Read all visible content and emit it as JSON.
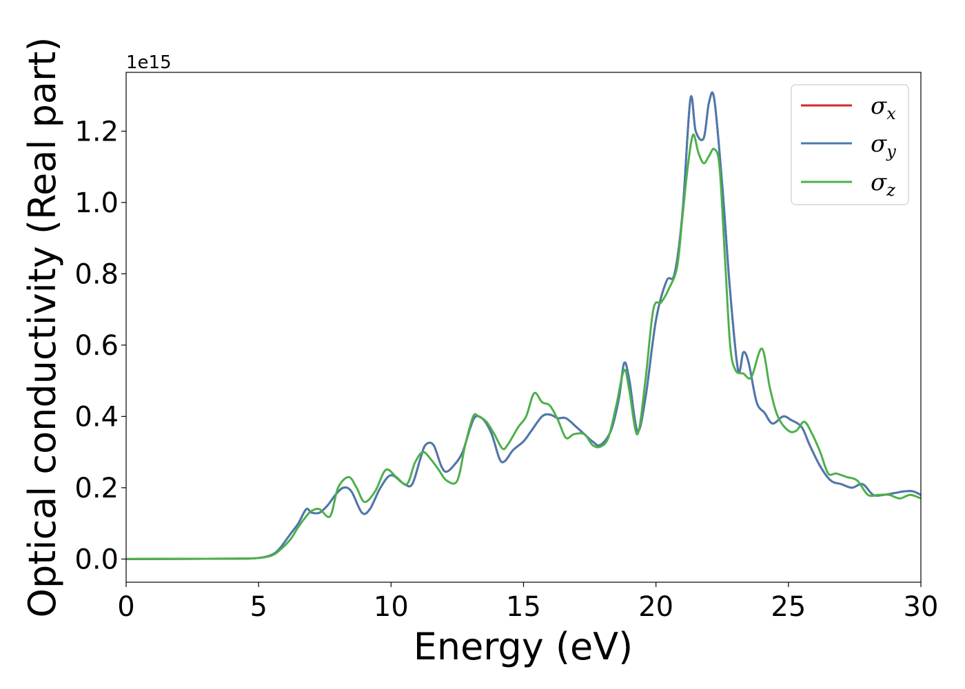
{
  "chart_data": {
    "type": "line",
    "xlabel": "Energy (eV)",
    "ylabel": "Optical conductivity (Real part)",
    "y_offset_label": "1e15",
    "xlim": [
      0,
      30
    ],
    "ylim": [
      -0.065,
      1.365
    ],
    "x_ticks": [
      0,
      5,
      10,
      15,
      20,
      25,
      30
    ],
    "x_tick_labels": [
      "0",
      "5",
      "10",
      "15",
      "20",
      "25",
      "30"
    ],
    "y_ticks": [
      0.0,
      0.2,
      0.4,
      0.6,
      0.8,
      1.0,
      1.2
    ],
    "y_tick_labels": [
      "0.0",
      "0.2",
      "0.4",
      "0.6",
      "0.8",
      "1.0",
      "1.2"
    ],
    "grid": false,
    "legend_position": "top-right",
    "series": [
      {
        "name": "σx",
        "legend_symbol": "σ",
        "legend_subscript": "x",
        "color": "#d62728",
        "x": [
          0,
          4,
          5,
          5.5,
          5.8,
          6.2,
          6.5,
          6.8,
          7.0,
          7.3,
          7.6,
          7.9,
          8.2,
          8.5,
          8.9,
          9.2,
          9.6,
          10.0,
          10.5,
          10.8,
          11.1,
          11.3,
          11.6,
          11.9,
          12.1,
          12.4,
          12.7,
          13.0,
          13.2,
          13.5,
          13.8,
          14.1,
          14.3,
          14.6,
          15.0,
          15.3,
          15.7,
          16.0,
          16.3,
          16.6,
          17.0,
          17.3,
          17.6,
          17.9,
          18.3,
          18.6,
          18.8,
          19.0,
          19.3,
          19.6,
          20.0,
          20.4,
          20.7,
          21.0,
          21.3,
          21.5,
          21.8,
          22.0,
          22.2,
          22.5,
          22.8,
          23.1,
          23.3,
          23.5,
          23.8,
          24.1,
          24.4,
          24.8,
          25.1,
          25.5,
          25.8,
          26.2,
          26.6,
          27.0,
          27.4,
          27.8,
          28.2,
          28.6,
          29.0,
          29.4,
          29.7,
          30.0
        ],
        "y": [
          0,
          0.001,
          0.003,
          0.012,
          0.03,
          0.07,
          0.1,
          0.14,
          0.13,
          0.13,
          0.15,
          0.18,
          0.2,
          0.19,
          0.13,
          0.14,
          0.2,
          0.235,
          0.21,
          0.21,
          0.28,
          0.32,
          0.32,
          0.26,
          0.245,
          0.265,
          0.3,
          0.37,
          0.4,
          0.39,
          0.35,
          0.28,
          0.275,
          0.305,
          0.33,
          0.36,
          0.4,
          0.405,
          0.395,
          0.395,
          0.37,
          0.35,
          0.33,
          0.32,
          0.36,
          0.45,
          0.55,
          0.5,
          0.36,
          0.45,
          0.67,
          0.78,
          0.8,
          0.97,
          1.29,
          1.2,
          1.18,
          1.28,
          1.29,
          1.05,
          0.75,
          0.53,
          0.58,
          0.55,
          0.44,
          0.41,
          0.38,
          0.4,
          0.39,
          0.37,
          0.32,
          0.26,
          0.22,
          0.21,
          0.2,
          0.21,
          0.18,
          0.18,
          0.185,
          0.19,
          0.19,
          0.18
        ]
      },
      {
        "name": "σy",
        "legend_symbol": "σ",
        "legend_subscript": "y",
        "color": "#4a7aaf",
        "x": [
          0,
          4,
          5,
          5.5,
          5.8,
          6.2,
          6.5,
          6.8,
          7.0,
          7.3,
          7.6,
          7.9,
          8.2,
          8.5,
          8.9,
          9.2,
          9.6,
          10.0,
          10.5,
          10.8,
          11.1,
          11.3,
          11.6,
          11.9,
          12.1,
          12.4,
          12.7,
          13.0,
          13.2,
          13.5,
          13.8,
          14.1,
          14.3,
          14.6,
          15.0,
          15.3,
          15.7,
          16.0,
          16.3,
          16.6,
          17.0,
          17.3,
          17.6,
          17.9,
          18.3,
          18.6,
          18.8,
          19.0,
          19.3,
          19.6,
          20.0,
          20.4,
          20.7,
          21.0,
          21.3,
          21.5,
          21.8,
          22.0,
          22.2,
          22.5,
          22.8,
          23.1,
          23.3,
          23.5,
          23.8,
          24.1,
          24.4,
          24.8,
          25.1,
          25.5,
          25.8,
          26.2,
          26.6,
          27.0,
          27.4,
          27.8,
          28.2,
          28.6,
          29.0,
          29.4,
          29.7,
          30.0
        ],
        "y": [
          0,
          0.001,
          0.003,
          0.012,
          0.03,
          0.07,
          0.1,
          0.14,
          0.13,
          0.13,
          0.15,
          0.18,
          0.2,
          0.19,
          0.13,
          0.14,
          0.2,
          0.235,
          0.21,
          0.21,
          0.28,
          0.32,
          0.32,
          0.26,
          0.245,
          0.265,
          0.3,
          0.37,
          0.4,
          0.39,
          0.35,
          0.28,
          0.275,
          0.305,
          0.33,
          0.36,
          0.4,
          0.405,
          0.395,
          0.395,
          0.37,
          0.35,
          0.33,
          0.32,
          0.36,
          0.45,
          0.55,
          0.5,
          0.36,
          0.45,
          0.67,
          0.78,
          0.8,
          0.97,
          1.29,
          1.2,
          1.18,
          1.28,
          1.29,
          1.05,
          0.75,
          0.53,
          0.58,
          0.55,
          0.44,
          0.41,
          0.38,
          0.4,
          0.39,
          0.37,
          0.32,
          0.26,
          0.22,
          0.21,
          0.2,
          0.21,
          0.18,
          0.18,
          0.185,
          0.19,
          0.19,
          0.18
        ]
      },
      {
        "name": "σz",
        "legend_symbol": "σ",
        "legend_subscript": "z",
        "color": "#4daf4a",
        "x": [
          0,
          4,
          5,
          5.5,
          5.8,
          6.2,
          6.5,
          6.8,
          7.0,
          7.3,
          7.7,
          8.0,
          8.4,
          8.7,
          9.0,
          9.4,
          9.8,
          10.2,
          10.6,
          10.9,
          11.2,
          11.5,
          11.8,
          12.1,
          12.5,
          12.8,
          13.1,
          13.3,
          13.6,
          13.9,
          14.2,
          14.4,
          14.8,
          15.1,
          15.4,
          15.7,
          16.0,
          16.3,
          16.6,
          16.9,
          17.3,
          17.6,
          17.9,
          18.2,
          18.5,
          18.8,
          19.0,
          19.3,
          19.6,
          19.9,
          20.2,
          20.5,
          20.8,
          21.0,
          21.2,
          21.4,
          21.6,
          21.8,
          22.0,
          22.2,
          22.4,
          22.6,
          22.8,
          23.0,
          23.3,
          23.6,
          24.0,
          24.3,
          24.6,
          25.0,
          25.3,
          25.6,
          25.9,
          26.2,
          26.5,
          26.8,
          27.2,
          27.6,
          28.0,
          28.4,
          28.8,
          29.2,
          29.6,
          30.0
        ],
        "y": [
          0,
          0.001,
          0.003,
          0.01,
          0.025,
          0.055,
          0.09,
          0.12,
          0.135,
          0.14,
          0.12,
          0.2,
          0.23,
          0.2,
          0.16,
          0.19,
          0.25,
          0.23,
          0.21,
          0.27,
          0.3,
          0.28,
          0.25,
          0.22,
          0.22,
          0.32,
          0.4,
          0.4,
          0.385,
          0.35,
          0.31,
          0.32,
          0.37,
          0.4,
          0.465,
          0.44,
          0.43,
          0.39,
          0.34,
          0.35,
          0.35,
          0.32,
          0.315,
          0.34,
          0.43,
          0.53,
          0.47,
          0.35,
          0.5,
          0.7,
          0.72,
          0.76,
          0.82,
          0.96,
          1.1,
          1.19,
          1.14,
          1.11,
          1.13,
          1.15,
          1.1,
          0.85,
          0.6,
          0.53,
          0.52,
          0.51,
          0.59,
          0.48,
          0.4,
          0.36,
          0.36,
          0.385,
          0.35,
          0.3,
          0.24,
          0.24,
          0.23,
          0.22,
          0.18,
          0.18,
          0.18,
          0.17,
          0.18,
          0.17
        ]
      }
    ]
  }
}
